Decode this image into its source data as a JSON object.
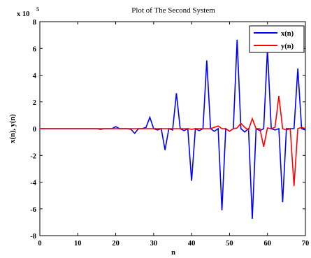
{
  "chart_data": {
    "type": "line",
    "title": "Plot of The Second System",
    "xlabel": "n",
    "ylabel": "x(n), y(n)",
    "y_multiplier_label": "x 10",
    "y_multiplier_exponent": "5",
    "xlim": [
      0,
      70
    ],
    "ylim": [
      -8,
      8
    ],
    "xticks": [
      0,
      10,
      20,
      30,
      40,
      50,
      60,
      70
    ],
    "yticks": [
      -8,
      -6,
      -4,
      -2,
      0,
      2,
      4,
      6,
      8
    ],
    "grid": false,
    "legend_position": "top-right",
    "x": [
      0,
      1,
      2,
      3,
      4,
      5,
      6,
      7,
      8,
      9,
      10,
      11,
      12,
      13,
      14,
      15,
      16,
      17,
      18,
      19,
      20,
      21,
      22,
      23,
      24,
      25,
      26,
      27,
      28,
      29,
      30,
      31,
      32,
      33,
      34,
      35,
      36,
      37,
      38,
      39,
      40,
      41,
      42,
      43,
      44,
      45,
      46,
      47,
      48,
      49,
      50,
      51,
      52,
      53,
      54,
      55,
      56,
      57,
      58,
      59,
      60,
      61,
      62,
      63,
      64,
      65,
      66,
      67,
      68,
      69,
      70
    ],
    "series": [
      {
        "name": "x(n)",
        "color": "#0000ff",
        "values": [
          0,
          0,
          0,
          0,
          0,
          0,
          0,
          0,
          0,
          0,
          0,
          0,
          0,
          0,
          0,
          0,
          -0.05,
          0,
          0,
          0,
          0.15,
          0,
          0,
          0,
          -0.05,
          -0.35,
          0,
          0,
          0.1,
          0.85,
          0,
          -0.1,
          0,
          -1.6,
          0,
          -0.1,
          2.65,
          0,
          -0.15,
          0,
          -3.9,
          0,
          -0.15,
          0,
          5.1,
          0,
          -0.2,
          0,
          -6.1,
          0,
          -0.2,
          0,
          6.65,
          0,
          -0.25,
          0,
          -6.75,
          0,
          -0.15,
          0,
          5.95,
          0,
          -0.1,
          0,
          -5.5,
          0,
          0,
          0,
          4.5,
          0,
          -0.1
        ]
      },
      {
        "name": "y(n)",
        "color": "#ff0000",
        "values": [
          0,
          0,
          0,
          0,
          0,
          0,
          0,
          0,
          0,
          0,
          0,
          0,
          0,
          0,
          0,
          0,
          0,
          0,
          0,
          0,
          0,
          0,
          0,
          0,
          0,
          0,
          0,
          0,
          0,
          0,
          0,
          0,
          0,
          0,
          0,
          0,
          0,
          0,
          0,
          0,
          -0.05,
          0,
          0,
          0,
          0,
          0,
          0.1,
          0.2,
          0,
          0,
          -0.2,
          0,
          0.05,
          0.4,
          0.1,
          -0.1,
          0.75,
          0,
          0,
          -1.35,
          0.05,
          0,
          0.1,
          2.45,
          0,
          -0.1,
          0,
          -4.3,
          0,
          0.1,
          0
        ]
      }
    ]
  }
}
